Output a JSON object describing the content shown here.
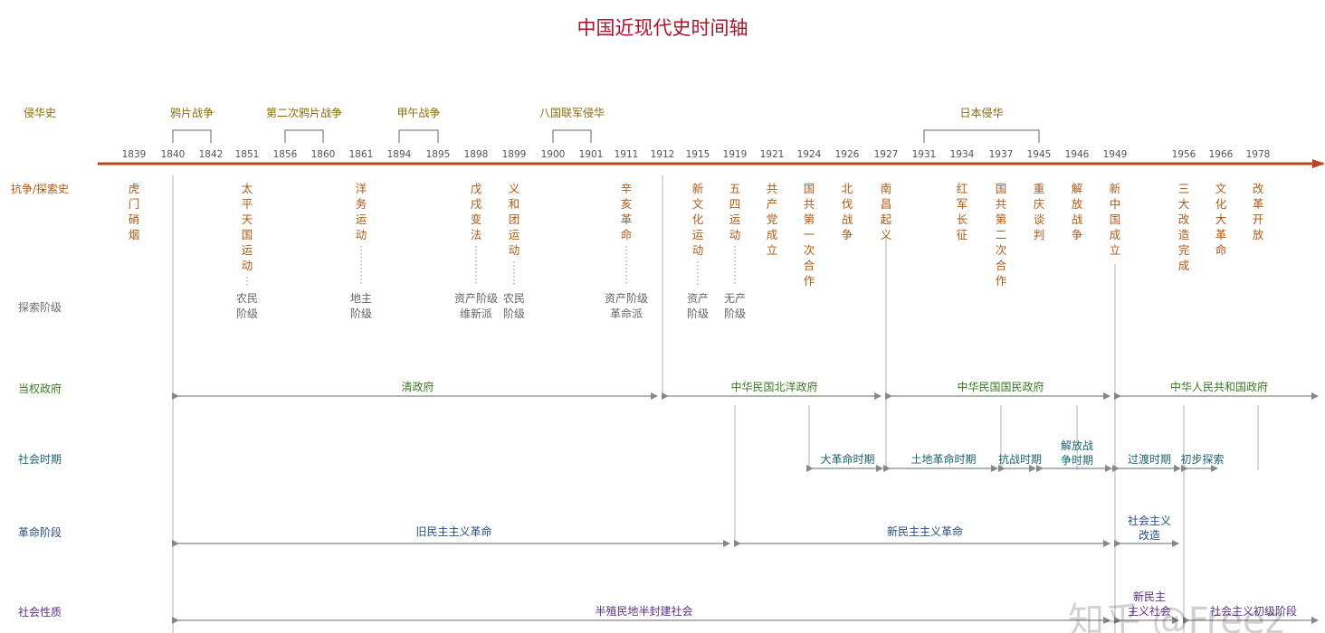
{
  "title": "中国近现代史时间轴",
  "watermark": "知乎 @Freez",
  "colors": {
    "title": "#b0122b",
    "axis": "#b8451c",
    "invasion": "#8a6a0c",
    "struggle": "#b05a14",
    "class_text": "#666666",
    "row_label_gray": "#6f6f6f",
    "government": "#3a7a22",
    "society_period": "#1d6571",
    "revolution": "#274d82",
    "social_nature": "#5e2f86",
    "struggle_row_label": "#b05a14",
    "invasion_row_label": "#8a6a0c",
    "arrow": "#888888",
    "divider": "#b3b3b3",
    "bracket": "#666666"
  },
  "row_labels": {
    "invasion": "侵华史",
    "struggle": "抗争/探索史",
    "class": "探索阶级",
    "government": "当权政府",
    "period": "社会时期",
    "stage": "革命阶段",
    "nature": "社会性质"
  },
  "years": [
    "1839",
    "1840",
    "1842",
    "1851",
    "1856",
    "1860",
    "1861",
    "1894",
    "1895",
    "1898",
    "1899",
    "1900",
    "1901",
    "1911",
    "1912",
    "1915",
    "1919",
    "1921",
    "1924",
    "1926",
    "1927",
    "1931",
    "1934",
    "1937",
    "1945",
    "1946",
    "1949",
    "1956",
    "1966",
    "1978"
  ],
  "invasions": [
    {
      "label": "鸦片战争",
      "from": "1840",
      "to": "1842"
    },
    {
      "label": "第二次鸦片战争",
      "from": "1856",
      "to": "1860"
    },
    {
      "label": "甲午战争",
      "from": "1894",
      "to": "1895"
    },
    {
      "label": "八国联军侵华",
      "from": "1900",
      "to": "1901"
    },
    {
      "label": "日本侵华",
      "from": "1931",
      "to": "1945"
    }
  ],
  "struggles": [
    {
      "year": "1839",
      "text": "虎门硝烟"
    },
    {
      "year": "1851",
      "text": "太平天国运动",
      "class": [
        "农民",
        "阶级"
      ]
    },
    {
      "year": "1861",
      "text": "洋务运动",
      "class": [
        "地主",
        "阶级"
      ]
    },
    {
      "year": "1898",
      "text": "戊戌变法",
      "class": [
        "资产阶级",
        "维新派"
      ]
    },
    {
      "year": "1899",
      "text": "义和团运动",
      "class": [
        "农民",
        "阶级"
      ]
    },
    {
      "year": "1911",
      "text": "辛亥革命",
      "class": [
        "资产阶级",
        "革命派"
      ]
    },
    {
      "year": "1915",
      "text": "新文化运动",
      "class": [
        "资产",
        "阶级"
      ]
    },
    {
      "year": "1919",
      "text": "五四运动",
      "class": [
        "无产",
        "阶级"
      ]
    },
    {
      "year": "1921",
      "text": "共产党成立"
    },
    {
      "year": "1924",
      "text": "国共第一次合作"
    },
    {
      "year": "1926",
      "text": "北伐战争"
    },
    {
      "year": "1927",
      "text": "南昌起义"
    },
    {
      "year": "1934",
      "text": "红军长征"
    },
    {
      "year": "1937",
      "text": "国共第二次合作"
    },
    {
      "year": "1945",
      "text": "重庆谈判"
    },
    {
      "year": "1946",
      "text": "解放战争"
    },
    {
      "year": "1949",
      "text": "新中国成立"
    },
    {
      "year": "1956",
      "text": "三大改造完成"
    },
    {
      "year": "1966",
      "text": "文化大革命"
    },
    {
      "year": "1978",
      "text": "改革开放"
    }
  ],
  "governments": [
    {
      "label": "清政府",
      "from": "1840",
      "to": "1912"
    },
    {
      "label": "中华民国北洋政府",
      "from": "1912",
      "to": "1927"
    },
    {
      "label": "中华民国国民政府",
      "from": "1927",
      "to": "1949"
    },
    {
      "label": "中华人民共和国政府",
      "from": "1949",
      "to": "end"
    }
  ],
  "periods": [
    {
      "label": "大革命时期",
      "from": "1924",
      "to": "1927"
    },
    {
      "label": "土地革命时期",
      "from": "1927",
      "to": "1937"
    },
    {
      "label": "抗战时期",
      "from": "1937",
      "to": "1945"
    },
    {
      "label": "解放战争时期",
      "from": "1945",
      "to": "1949"
    },
    {
      "label": "过渡时期",
      "from": "1949",
      "to": "1956"
    },
    {
      "label": "初步探索",
      "from": "1956",
      "to": "1966"
    }
  ],
  "stages": [
    {
      "label": "旧民主主义革命",
      "from": "1840",
      "to": "1919"
    },
    {
      "label": "新民主主义革命",
      "from": "1919",
      "to": "1949"
    },
    {
      "label": "社会主义改造",
      "from": "1949",
      "to": "1956"
    }
  ],
  "natures": [
    {
      "label": "半殖民地半封建社会",
      "from": "1840",
      "to": "1949"
    },
    {
      "label": "新民主主义社会",
      "from": "1949",
      "to": "1956"
    },
    {
      "label": "社会主义初级阶段",
      "from": "1956",
      "to": "end"
    }
  ]
}
